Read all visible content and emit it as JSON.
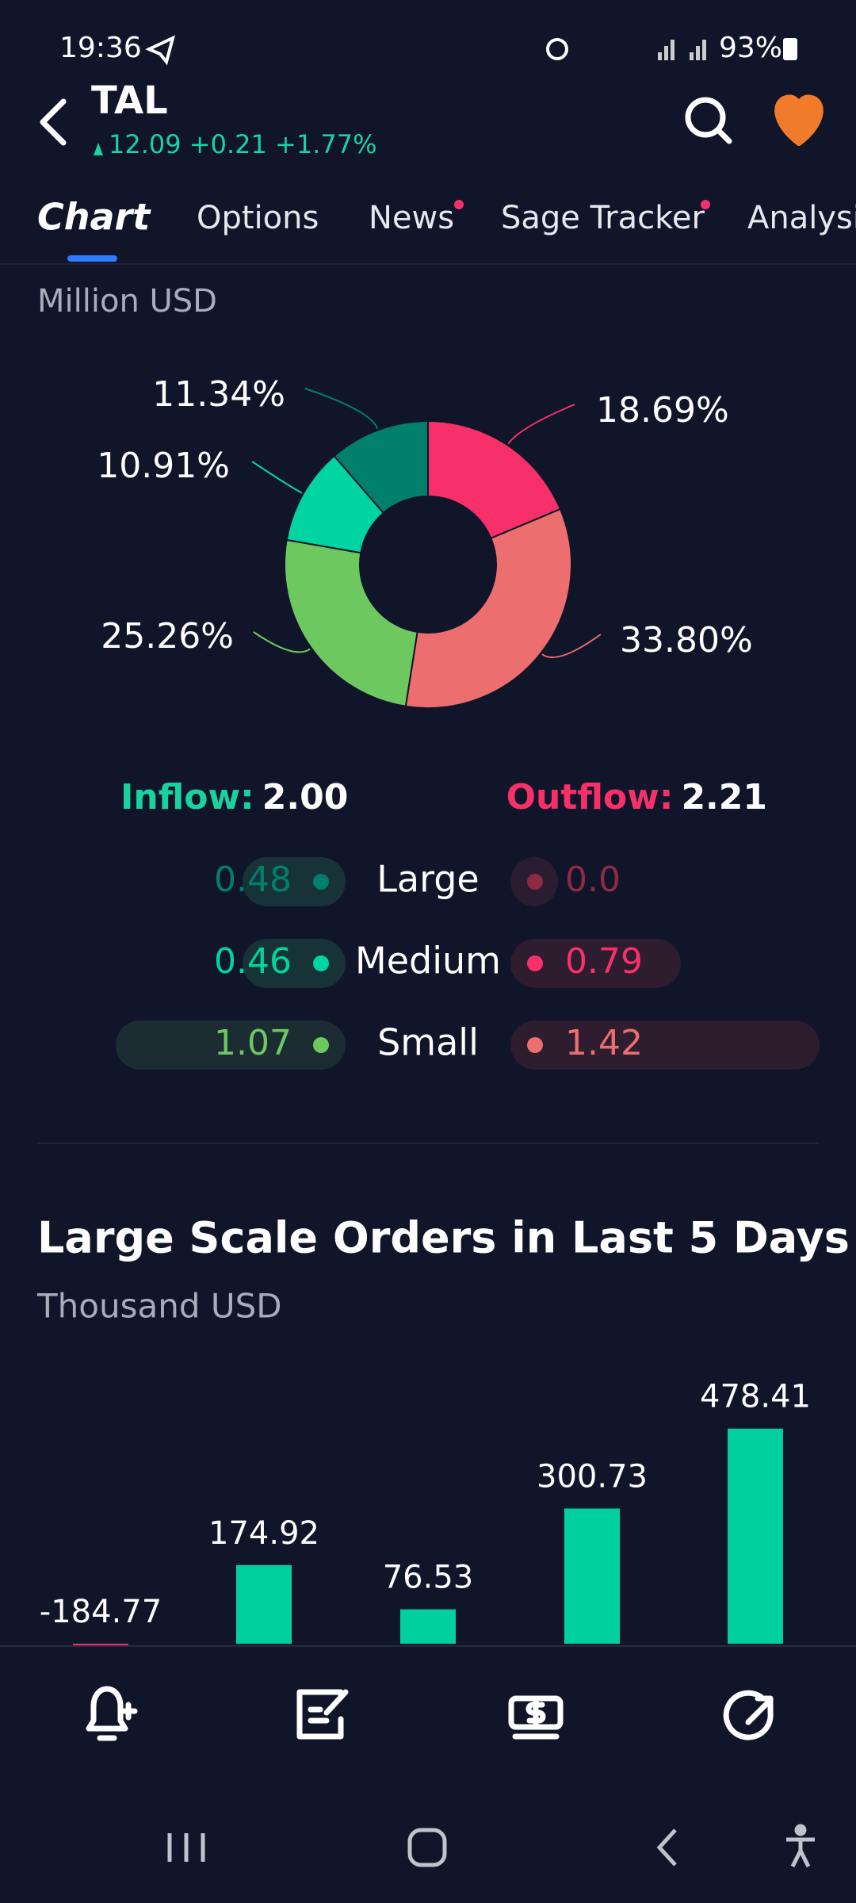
{
  "status_bar": {
    "time": "19:36",
    "battery": "93%"
  },
  "header": {
    "ticker": "TAL",
    "price": "12.09",
    "change": "+0.21",
    "change_pct": "+1.77%"
  },
  "tabs": [
    "Chart",
    "Options",
    "News",
    "Sage Tracker",
    "Analysis"
  ],
  "chart_data": [
    {
      "type": "pie",
      "subtitle": "Million USD",
      "values": [
        18.69,
        33.8,
        25.26,
        10.91,
        11.34
      ],
      "value_labels": [
        "18.69%",
        "33.80%",
        "25.26%",
        "10.91%",
        "11.34%"
      ],
      "colors": [
        "#f7306a",
        "#ec6e6e",
        "#6dc95f",
        "#00d4a0",
        "#007f6c"
      ],
      "donut": true
    },
    {
      "type": "bar",
      "title": "Large Scale Orders in Last 5 Days",
      "subtitle": "Thousand USD",
      "values": [
        -184.77,
        174.92,
        76.53,
        300.73,
        478.41
      ],
      "color": "#00d0a0",
      "negative_color": "#f7306a"
    }
  ],
  "flow": {
    "inflow": {
      "label": "Inflow:",
      "value": "2.00"
    },
    "outflow": {
      "label": "Outflow:",
      "value": "2.21"
    },
    "rows": [
      {
        "name": "Large",
        "inflow": "0.48",
        "outflow": "0.0"
      },
      {
        "name": "Medium",
        "inflow": "0.46",
        "outflow": "0.79"
      },
      {
        "name": "Small",
        "inflow": "1.07",
        "outflow": "1.42"
      }
    ]
  }
}
